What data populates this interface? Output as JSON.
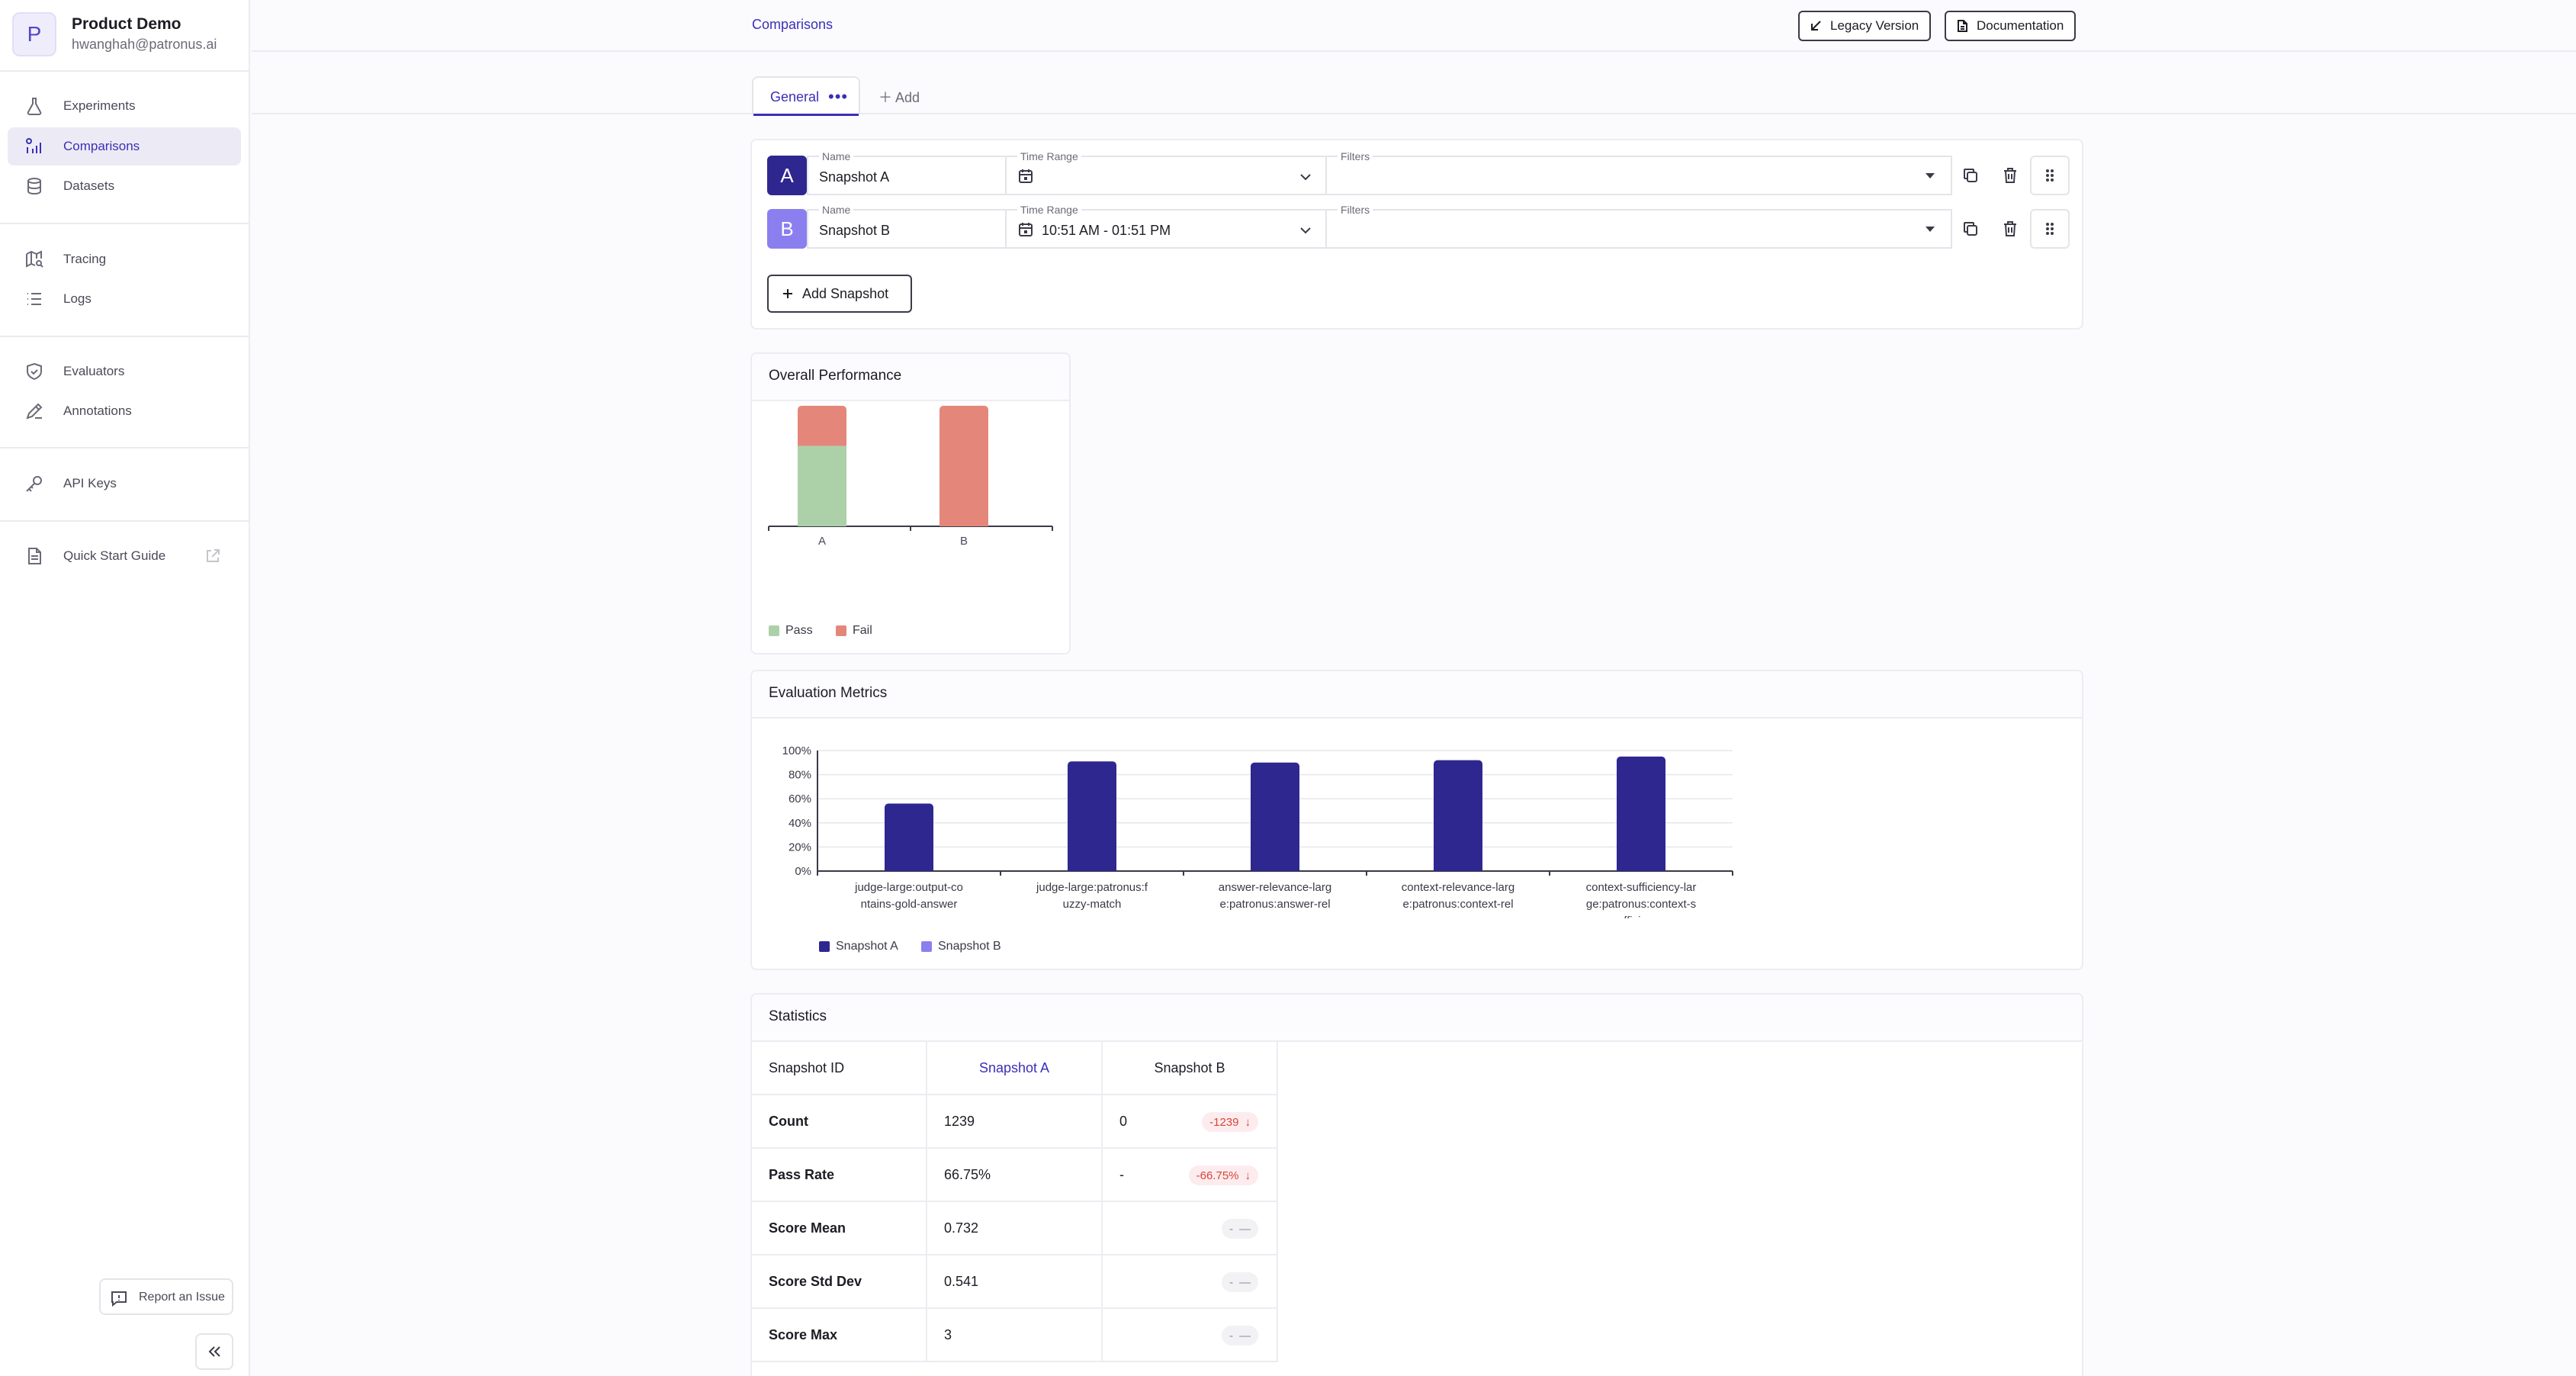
{
  "org": {
    "initial": "P",
    "name": "Product Demo",
    "email": "hwanghah@patronus.ai"
  },
  "nav": {
    "experiments": "Experiments",
    "comparisons": "Comparisons",
    "datasets": "Datasets",
    "tracing": "Tracing",
    "logs": "Logs",
    "evaluators": "Evaluators",
    "annotations": "Annotations",
    "api_keys": "API Keys",
    "quick_start": "Quick Start Guide"
  },
  "sidebar_footer": {
    "report": "Report an Issue"
  },
  "topbar": {
    "breadcrumb": "Comparisons",
    "legacy": "Legacy Version",
    "docs": "Documentation"
  },
  "tabs": {
    "active": "General",
    "add": "Add"
  },
  "snapshots": {
    "labels": {
      "name": "Name",
      "time": "Time Range",
      "filters": "Filters"
    },
    "a": {
      "badge": "A",
      "name": "Snapshot A",
      "time": ""
    },
    "b": {
      "badge": "B",
      "name": "Snapshot B",
      "time": "10:51 AM - 01:51 PM"
    },
    "add": "Add Snapshot"
  },
  "overall": {
    "title": "Overall Performance",
    "categories": [
      "A",
      "B"
    ],
    "legend": {
      "pass": "Pass",
      "fail": "Fail"
    }
  },
  "metrics": {
    "title": "Evaluation Metrics",
    "ticks": [
      "100%",
      "80%",
      "60%",
      "40%",
      "20%",
      "0%"
    ],
    "legend": {
      "a": "Snapshot A",
      "b": "Snapshot B"
    }
  },
  "chart_data": [
    {
      "type": "bar",
      "title": "Overall Performance",
      "categories": [
        "A",
        "B"
      ],
      "stacked": true,
      "series": [
        {
          "name": "Pass",
          "values": [
            66.75,
            0
          ]
        },
        {
          "name": "Fail",
          "values": [
            33.25,
            100
          ]
        }
      ],
      "colors": {
        "Pass": "#acd1a8",
        "Fail": "#e4877a"
      },
      "legend": "bottom-left"
    },
    {
      "type": "bar",
      "title": "Evaluation Metrics",
      "categories": [
        [
          "judge-large:output-co",
          "ntains-gold-answer"
        ],
        [
          "judge-large:patronus:f",
          "uzzy-match"
        ],
        [
          "answer-relevance-larg",
          "e:patronus:answer-rel",
          "evance"
        ],
        [
          "context-relevance-larg",
          "e:patronus:context-rel",
          "evance"
        ],
        [
          "context-sufficiency-lar",
          "ge:patronus:context-s",
          "ufficiency"
        ]
      ],
      "series": [
        {
          "name": "Snapshot A",
          "values": [
            56,
            91,
            90,
            92,
            95
          ]
        },
        {
          "name": "Snapshot B",
          "values": [
            0,
            0,
            0,
            0,
            0
          ]
        }
      ],
      "ylim": [
        0,
        100
      ],
      "colors": {
        "Snapshot A": "#2f2790",
        "Snapshot B": "#8b7ff0"
      },
      "grid": true,
      "legend": "bottom-left"
    }
  ],
  "statistics": {
    "title": "Statistics",
    "header": {
      "label": "Snapshot ID",
      "a": "Snapshot A",
      "b": "Snapshot B"
    },
    "rows": [
      {
        "label": "Count",
        "a": "1239",
        "b": "0",
        "delta": "-1239",
        "kind": "neg"
      },
      {
        "label": "Pass Rate",
        "a": "66.75%",
        "b": "-",
        "delta": "-66.75%",
        "kind": "neg"
      },
      {
        "label": "Score Mean",
        "a": "0.732",
        "b": "",
        "delta": "-",
        "kind": "neutral"
      },
      {
        "label": "Score Std Dev",
        "a": "0.541",
        "b": "",
        "delta": "-",
        "kind": "neutral"
      },
      {
        "label": "Score Max",
        "a": "3",
        "b": "",
        "delta": "-",
        "kind": "neutral"
      }
    ]
  },
  "colors": {
    "accent": "#3a2fb8",
    "snapA": "#2f2790",
    "snapB": "#8b7ff0"
  }
}
